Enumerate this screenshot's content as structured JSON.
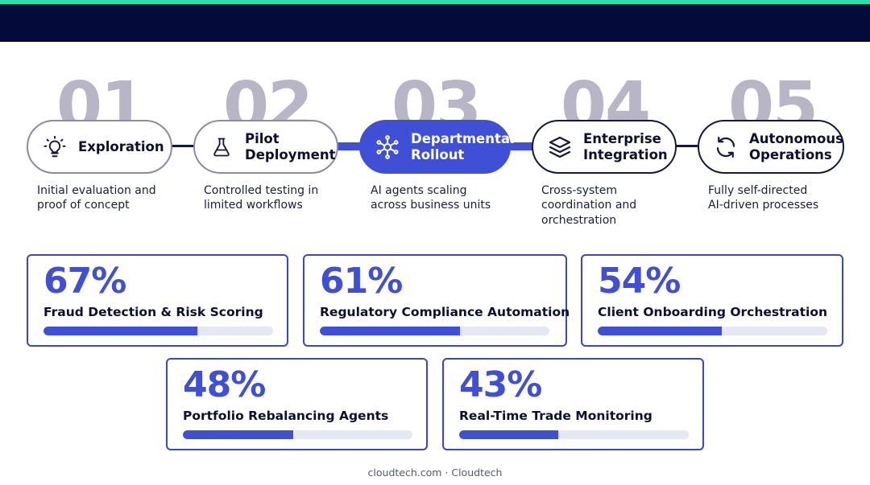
{
  "stages": [
    {
      "number": "01",
      "label_line1": "Exploration",
      "label_line2": "",
      "icon": "lightbulb-icon",
      "description_line1": "Initial evaluation and",
      "description_line2": "proof of concept",
      "description_line3": ""
    },
    {
      "number": "02",
      "label_line1": "Pilot",
      "label_line2": "Deployment",
      "icon": "flask-icon",
      "description_line1": "Controlled testing in",
      "description_line2": "limited workflows",
      "description_line3": ""
    },
    {
      "number": "03",
      "label_line1": "Departmental",
      "label_line2": "Rollout",
      "icon": "network-icon",
      "description_line1": "AI agents scaling",
      "description_line2": "across business units",
      "description_line3": ""
    },
    {
      "number": "04",
      "label_line1": "Enterprise",
      "label_line2": "Integration",
      "icon": "layers-icon",
      "description_line1": "Cross-system",
      "description_line2": "coordination and",
      "description_line3": "orchestration"
    },
    {
      "number": "05",
      "label_line1": "Autonomous",
      "label_line2": "Operations",
      "icon": "refresh-icon",
      "description_line1": "Fully self-directed",
      "description_line2": "AI-driven processes",
      "description_line3": ""
    }
  ],
  "stats": [
    {
      "percent_label": "67%",
      "value": 67,
      "title": "Fraud Detection & Risk Scoring"
    },
    {
      "percent_label": "61%",
      "value": 61,
      "title": "Regulatory Compliance Automation"
    },
    {
      "percent_label": "54%",
      "value": 54,
      "title": "Client Onboarding Orchestration"
    },
    {
      "percent_label": "48%",
      "value": 48,
      "title": "Portfolio Rebalancing Agents"
    },
    {
      "percent_label": "43%",
      "value": 43,
      "title": "Real-Time Trade Monitoring"
    }
  ],
  "footer": "cloudtech.com · Cloudtech",
  "colors": {
    "accent": "#3f4fd6",
    "top_bar": "#040b3a",
    "top_accent": "#2fe0a6",
    "number_grey": "#b7b5c6"
  }
}
